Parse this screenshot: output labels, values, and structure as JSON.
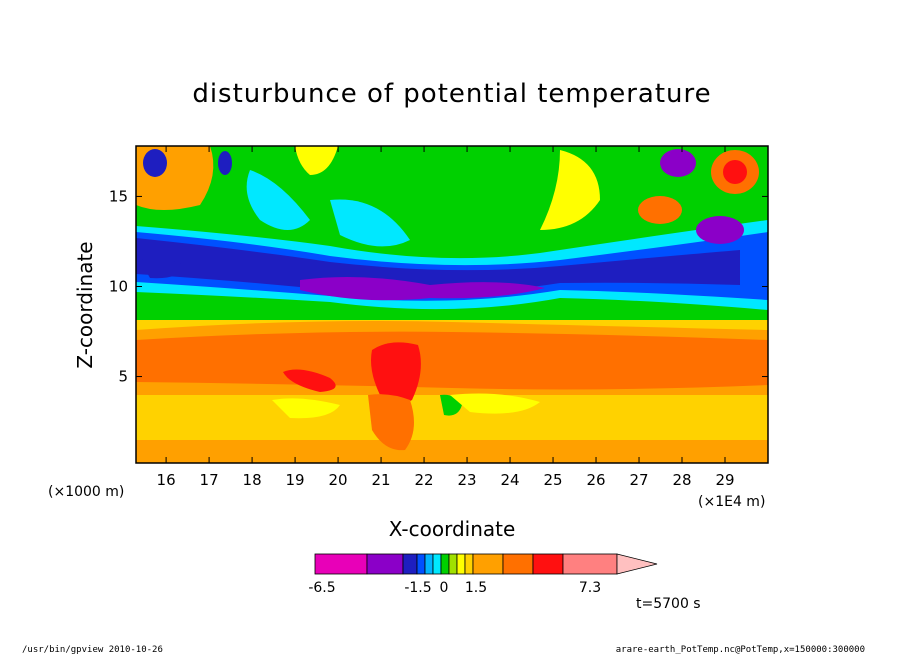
{
  "chart_data": {
    "type": "heatmap",
    "title": "disturbunce of potential temperature",
    "xlabel": "X-coordinate",
    "ylabel": "Z-coordinate",
    "x_unit_left": "(×1000 m)",
    "x_unit_right": "(×1E4 m)",
    "xlim": [
      15.3,
      30.0
    ],
    "ylim": [
      0.2,
      17.8
    ],
    "x_ticks": [
      "16",
      "17",
      "18",
      "19",
      "20",
      "21",
      "22",
      "23",
      "24",
      "25",
      "26",
      "27",
      "28",
      "29"
    ],
    "y_ticks": [
      "15",
      "10",
      "5"
    ],
    "colorbar": {
      "labels": [
        "-6.5",
        "-1.5",
        "0",
        "1.5",
        "7.3"
      ],
      "colors": [
        "#e800b8",
        "#8b00c8",
        "#1e1ec0",
        "#0050ff",
        "#00b4ff",
        "#00e8ff",
        "#00d000",
        "#a0e000",
        "#ffff00",
        "#ffd200",
        "#ffa000",
        "#ff7000",
        "#ff1010",
        "#ff8080",
        "#ffc0c0"
      ]
    },
    "time_label": "t=5700 s"
  },
  "footer": {
    "left": "/usr/bin/gpview   2010-10-26",
    "right": "arare-earth_PotTemp.nc@PotTemp,x=150000:300000"
  }
}
